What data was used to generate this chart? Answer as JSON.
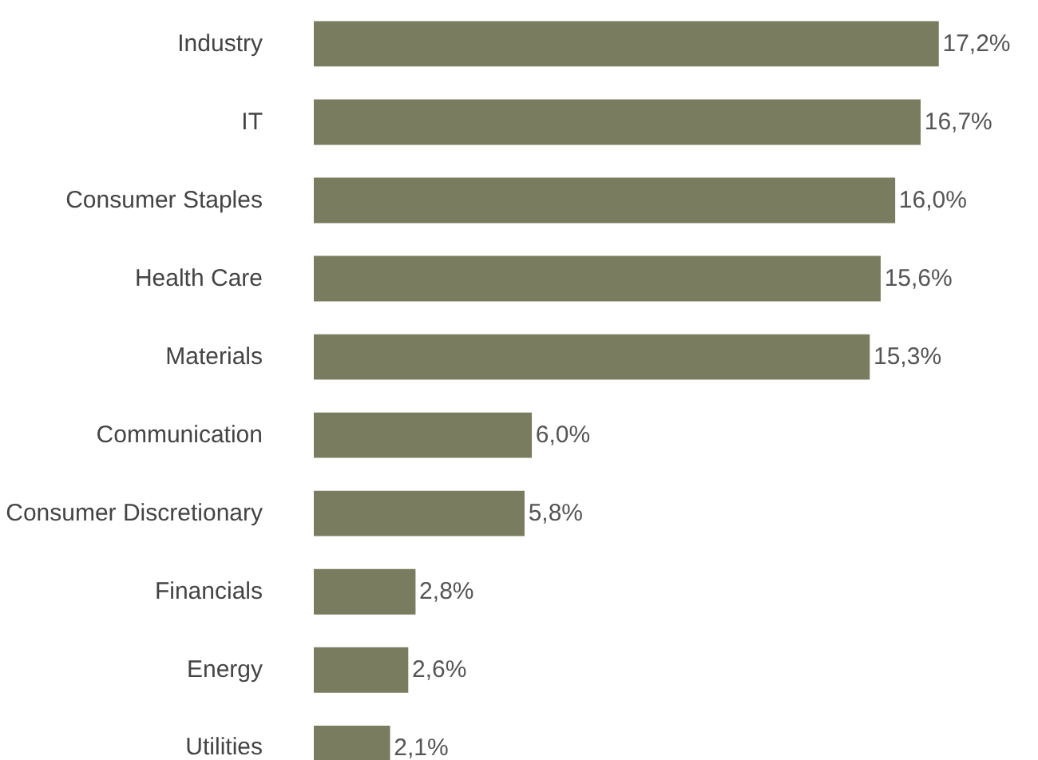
{
  "chart_data": {
    "type": "bar",
    "orientation": "horizontal",
    "color": "#7a7c5f",
    "categories": [
      "Industry",
      "IT",
      "Consumer Staples",
      "Health Care",
      "Materials",
      "Communication",
      "Consumer Discretionary",
      "Financials",
      "Energy",
      "Utilities"
    ],
    "values": [
      17.2,
      16.7,
      16.0,
      15.6,
      15.3,
      6.0,
      5.8,
      2.8,
      2.6,
      2.1
    ],
    "value_labels": [
      "17,2%",
      "16,7%",
      "16,0%",
      "15,6%",
      "15,3%",
      "6,0%",
      "5,8%",
      "2,8%",
      "2,6%",
      "2,1%"
    ]
  }
}
